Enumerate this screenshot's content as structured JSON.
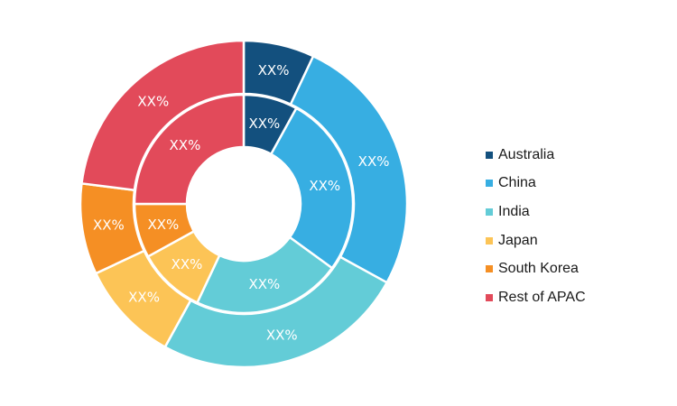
{
  "chart_data": {
    "type": "pie",
    "categories": [
      "Australia",
      "China",
      "India",
      "Japan",
      "South Korea",
      "Rest of APAC"
    ],
    "colors": [
      "#13507e",
      "#37aee2",
      "#63ccd7",
      "#fcc456",
      "#f58f24",
      "#e24a5a"
    ],
    "series": [
      {
        "ring": "outer",
        "values": [
          7,
          26,
          25,
          10,
          9,
          23
        ],
        "labels": [
          "XX%",
          "XX%",
          "XX%",
          "XX%",
          "XX%",
          "XX%"
        ]
      },
      {
        "ring": "inner",
        "values": [
          8,
          27,
          22,
          10,
          8,
          25
        ],
        "labels": [
          "XX%",
          "XX%",
          "XX%",
          "XX%",
          "XX%",
          "XX%"
        ]
      }
    ],
    "legend_position": "right"
  },
  "legend": {
    "items": [
      {
        "label": "Australia",
        "color": "#13507e"
      },
      {
        "label": "China",
        "color": "#37aee2"
      },
      {
        "label": "India",
        "color": "#63ccd7"
      },
      {
        "label": "Japan",
        "color": "#fcc456"
      },
      {
        "label": "South Korea",
        "color": "#f58f24"
      },
      {
        "label": "Rest of APAC",
        "color": "#e24a5a"
      }
    ]
  }
}
